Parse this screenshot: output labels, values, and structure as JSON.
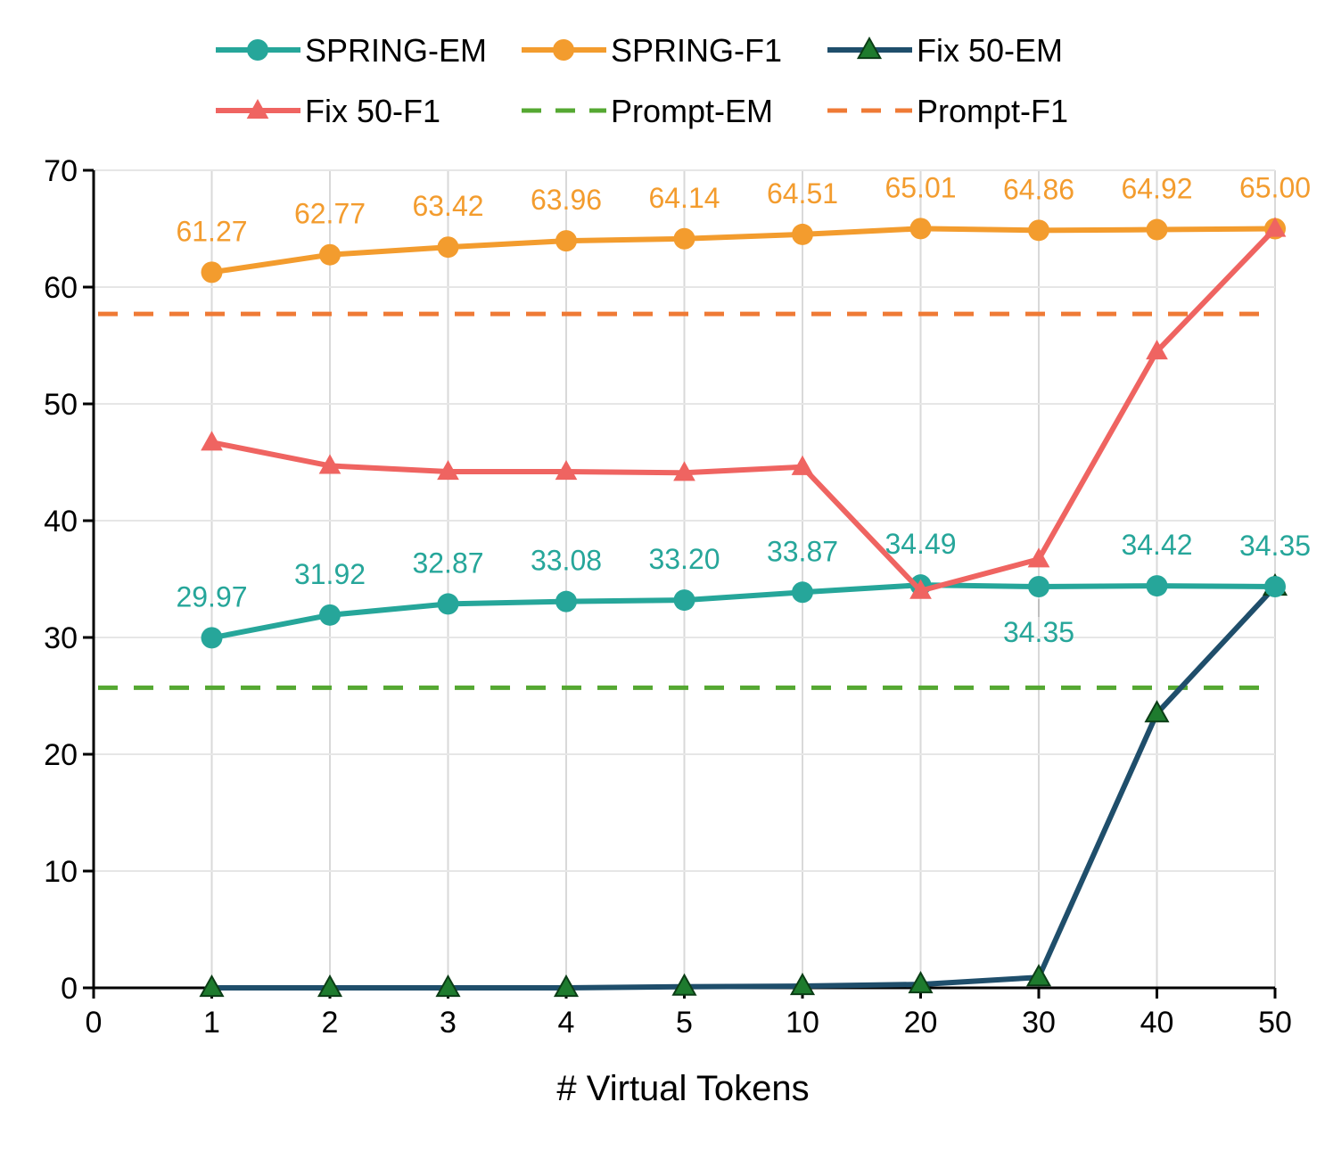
{
  "chart_data": {
    "type": "line",
    "xlabel": "# Virtual Tokens",
    "ylabel": "",
    "x_origin_label": "0",
    "categories": [
      "1",
      "2",
      "3",
      "4",
      "5",
      "10",
      "20",
      "30",
      "40",
      "50"
    ],
    "ylim": [
      0,
      70
    ],
    "yticks": [
      0,
      10,
      20,
      30,
      40,
      50,
      60,
      70
    ],
    "grid": "vertical",
    "legend_position": "top",
    "series": [
      {
        "name": "SPRING-EM",
        "color": "#26a69a",
        "marker": "circle",
        "style": "solid",
        "values": [
          29.97,
          31.92,
          32.87,
          33.08,
          33.2,
          33.87,
          34.49,
          34.35,
          34.42,
          34.35
        ],
        "labels": [
          "29.97",
          "31.92",
          "32.87",
          "33.08",
          "33.20",
          "33.87",
          "34.49",
          "34.35",
          "34.42",
          "34.35"
        ]
      },
      {
        "name": "SPRING-F1",
        "color": "#f39c2e",
        "marker": "circle",
        "style": "solid",
        "values": [
          61.27,
          62.77,
          63.42,
          63.96,
          64.14,
          64.51,
          65.01,
          64.86,
          64.92,
          65.0
        ],
        "labels": [
          "61.27",
          "62.77",
          "63.42",
          "63.96",
          "64.14",
          "64.51",
          "65.01",
          "64.86",
          "64.92",
          "65.00"
        ]
      },
      {
        "name": "Fix 50-EM",
        "color": "#1f4e6b",
        "marker_color": "#1e7b2e",
        "marker": "triangle",
        "style": "solid",
        "values": [
          0.0,
          0.0,
          0.0,
          0.0,
          0.1,
          0.15,
          0.3,
          0.9,
          23.5,
          34.35
        ]
      },
      {
        "name": "Fix 50-F1",
        "color": "#ef6461",
        "marker": "triangle",
        "style": "solid",
        "values": [
          46.7,
          44.7,
          44.2,
          44.2,
          44.1,
          44.6,
          34.0,
          36.7,
          54.5,
          65.0
        ]
      },
      {
        "name": "Prompt-EM",
        "color": "#55a832",
        "style": "dashed",
        "constant": 25.7
      },
      {
        "name": "Prompt-F1",
        "color": "#ef7a35",
        "style": "dashed",
        "constant": 57.7
      }
    ]
  }
}
